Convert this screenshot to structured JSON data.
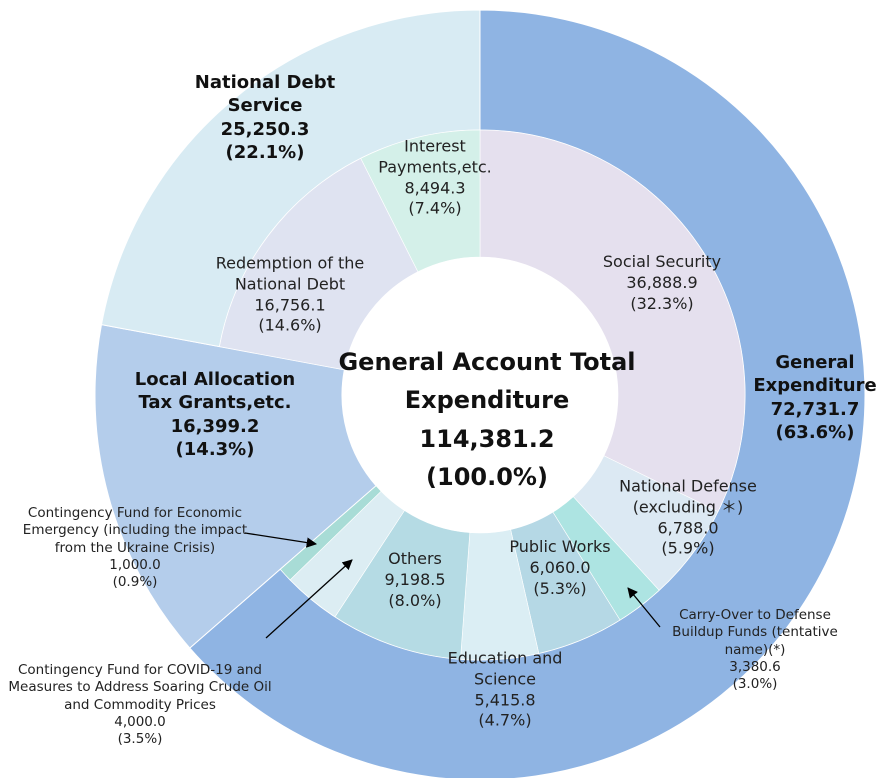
{
  "chart_data": {
    "type": "sunburst",
    "title": "General Account Total Expenditure",
    "total": 114381.2,
    "total_label": "114,381.2",
    "total_percent_label": "(100.0%)",
    "groups": [
      {
        "name": "General Expenditure",
        "value": 72731.7,
        "value_label": "72,731.7",
        "percent_label": "(63.6%)",
        "color": "#8fb4e3",
        "items": [
          {
            "name": "Social Security",
            "value": 36888.9,
            "value_label": "36,888.9",
            "percent_label": "(32.3%)",
            "color": "#e5e0ee"
          },
          {
            "name": "National Defense (excluding ＊)",
            "value": 6788.0,
            "value_label": "6,788.0",
            "percent_label": "(5.9%)",
            "color": "#dce9f3"
          },
          {
            "name": "Carry-Over to Defense Buildup Funds (tentative name)(*)",
            "value": 3380.6,
            "value_label": "3,380.6",
            "percent_label": "(3.0%)",
            "color": "#ade4e2"
          },
          {
            "name": "Public Works",
            "value": 6060.0,
            "value_label": "6,060.0",
            "percent_label": "(5.3%)",
            "color": "#b5d8e5"
          },
          {
            "name": "Education and Science",
            "value": 5415.8,
            "value_label": "5,415.8",
            "percent_label": "(4.7%)",
            "color": "#dbeef4"
          },
          {
            "name": "Others",
            "value": 9198.5,
            "value_label": "9,198.5",
            "percent_label": "(8.0%)",
            "color": "#b5dbe4"
          },
          {
            "name": "Contingency Fund for COVID-19 and Measures to Address Soaring Crude Oil and Commodity Prices",
            "value": 4000.0,
            "value_label": "4,000.0",
            "percent_label": "(3.5%)",
            "color": "#dcedf3"
          },
          {
            "name": "Contingency Fund for Economic Emergency (including the impact from the Ukraine Crisis)",
            "value": 1000.0,
            "value_label": "1,000.0",
            "percent_label": "(0.9%)",
            "color": "#a8dcd6"
          }
        ]
      },
      {
        "name": "Local Allocation Tax Grants,etc.",
        "value": 16399.2,
        "value_label": "16,399.2",
        "percent_label": "(14.3%)",
        "color": "#b4cdeb",
        "items": []
      },
      {
        "name": "National Debt Service",
        "value": 25250.3,
        "value_label": "25,250.3",
        "percent_label": "(22.1%)",
        "color": "#d8ebf3",
        "items": [
          {
            "name": "Redemption of the National Debt",
            "value": 16756.1,
            "value_label": "16,756.1",
            "percent_label": "(14.6%)",
            "color": "#dfe3f1"
          },
          {
            "name": "Interest Payments,etc.",
            "value": 8494.3,
            "value_label": "8,494.3",
            "percent_label": "(7.4%)",
            "color": "#d4f0e9"
          }
        ]
      }
    ]
  }
}
